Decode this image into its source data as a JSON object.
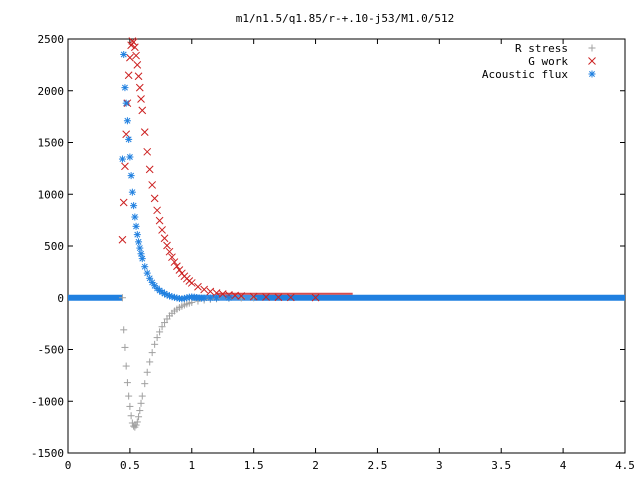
{
  "chart_data": {
    "type": "scatter",
    "title": "m1/n1.5/q1.85/r-+.10-j53/M1.0/512",
    "xlabel": "",
    "ylabel": "",
    "xlim": [
      0,
      4.5
    ],
    "ylim": [
      -1500,
      2500
    ],
    "xticks": [
      "0",
      "0.5",
      "1",
      "1.5",
      "2",
      "2.5",
      "3",
      "3.5",
      "4",
      "4.5"
    ],
    "yticks": [
      "2500",
      "2000",
      "1500",
      "1000",
      "500",
      "0",
      "-500",
      "-1000",
      "-1500"
    ],
    "grid": false,
    "legend_position": "top-right",
    "series": [
      {
        "name": "R stress",
        "marker": "+",
        "color": "#a0a0a0",
        "points": [
          [
            0.44,
            0
          ],
          [
            0.45,
            -310
          ],
          [
            0.46,
            -480
          ],
          [
            0.47,
            -660
          ],
          [
            0.48,
            -820
          ],
          [
            0.49,
            -950
          ],
          [
            0.5,
            -1050
          ],
          [
            0.51,
            -1140
          ],
          [
            0.52,
            -1210
          ],
          [
            0.53,
            -1240
          ],
          [
            0.54,
            -1250
          ],
          [
            0.55,
            -1230
          ],
          [
            0.56,
            -1200
          ],
          [
            0.57,
            -1150
          ],
          [
            0.58,
            -1090
          ],
          [
            0.59,
            -1020
          ],
          [
            0.6,
            -950
          ],
          [
            0.62,
            -830
          ],
          [
            0.64,
            -720
          ],
          [
            0.66,
            -620
          ],
          [
            0.68,
            -530
          ],
          [
            0.7,
            -450
          ],
          [
            0.72,
            -385
          ],
          [
            0.74,
            -330
          ],
          [
            0.76,
            -280
          ],
          [
            0.78,
            -240
          ],
          [
            0.8,
            -205
          ],
          [
            0.82,
            -175
          ],
          [
            0.84,
            -150
          ],
          [
            0.86,
            -128
          ],
          [
            0.88,
            -110
          ],
          [
            0.9,
            -95
          ],
          [
            0.92,
            -82
          ],
          [
            0.94,
            -70
          ],
          [
            0.96,
            -60
          ],
          [
            0.98,
            -52
          ],
          [
            1.0,
            -45
          ],
          [
            1.05,
            -32
          ],
          [
            1.1,
            -22
          ],
          [
            1.15,
            -15
          ],
          [
            1.2,
            -10
          ],
          [
            1.3,
            -5
          ],
          [
            1.4,
            -2
          ],
          [
            1.5,
            -1
          ]
        ]
      },
      {
        "name": "G work",
        "marker": "x",
        "color": "#cc2020",
        "points": [
          [
            0.44,
            560
          ],
          [
            0.45,
            920
          ],
          [
            0.46,
            1270
          ],
          [
            0.47,
            1580
          ],
          [
            0.48,
            1880
          ],
          [
            0.49,
            2150
          ],
          [
            0.5,
            2320
          ],
          [
            0.51,
            2440
          ],
          [
            0.52,
            2480
          ],
          [
            0.53,
            2470
          ],
          [
            0.54,
            2420
          ],
          [
            0.55,
            2340
          ],
          [
            0.56,
            2250
          ],
          [
            0.57,
            2140
          ],
          [
            0.58,
            2030
          ],
          [
            0.59,
            1920
          ],
          [
            0.6,
            1810
          ],
          [
            0.62,
            1600
          ],
          [
            0.64,
            1410
          ],
          [
            0.66,
            1240
          ],
          [
            0.68,
            1090
          ],
          [
            0.7,
            960
          ],
          [
            0.72,
            845
          ],
          [
            0.74,
            745
          ],
          [
            0.76,
            655
          ],
          [
            0.78,
            575
          ],
          [
            0.8,
            505
          ],
          [
            0.82,
            445
          ],
          [
            0.84,
            392
          ],
          [
            0.86,
            345
          ],
          [
            0.88,
            304
          ],
          [
            0.9,
            268
          ],
          [
            0.92,
            236
          ],
          [
            0.94,
            208
          ],
          [
            0.96,
            184
          ],
          [
            0.98,
            162
          ],
          [
            1.0,
            143
          ],
          [
            1.05,
            106
          ],
          [
            1.1,
            80
          ],
          [
            1.15,
            60
          ],
          [
            1.2,
            46
          ],
          [
            1.25,
            36
          ],
          [
            1.3,
            28
          ],
          [
            1.35,
            22
          ],
          [
            1.4,
            17
          ],
          [
            1.5,
            11
          ],
          [
            1.6,
            7
          ],
          [
            1.7,
            5
          ],
          [
            1.8,
            3
          ],
          [
            2.0,
            1
          ]
        ]
      },
      {
        "name": "Acoustic flux",
        "marker": "*",
        "color": "#2080e0",
        "points": [
          [
            0.44,
            1340
          ],
          [
            0.45,
            2350
          ],
          [
            0.46,
            2030
          ],
          [
            0.47,
            1880
          ],
          [
            0.48,
            1710
          ],
          [
            0.49,
            1530
          ],
          [
            0.5,
            1360
          ],
          [
            0.51,
            1180
          ],
          [
            0.52,
            1020
          ],
          [
            0.53,
            890
          ],
          [
            0.54,
            780
          ],
          [
            0.55,
            690
          ],
          [
            0.56,
            610
          ],
          [
            0.57,
            540
          ],
          [
            0.58,
            480
          ],
          [
            0.59,
            425
          ],
          [
            0.6,
            378
          ],
          [
            0.62,
            300
          ],
          [
            0.64,
            238
          ],
          [
            0.66,
            188
          ],
          [
            0.68,
            148
          ],
          [
            0.7,
            116
          ],
          [
            0.72,
            90
          ],
          [
            0.74,
            70
          ],
          [
            0.76,
            54
          ],
          [
            0.78,
            40
          ],
          [
            0.8,
            28
          ],
          [
            0.82,
            18
          ],
          [
            0.84,
            10
          ],
          [
            0.86,
            4
          ],
          [
            0.88,
            -2
          ],
          [
            0.9,
            -8
          ],
          [
            0.92,
            -10
          ],
          [
            0.94,
            -6
          ],
          [
            0.96,
            0
          ],
          [
            0.98,
            6
          ],
          [
            1.0,
            8
          ],
          [
            1.02,
            6
          ],
          [
            1.04,
            2
          ],
          [
            1.06,
            -2
          ],
          [
            1.08,
            -4
          ],
          [
            1.1,
            -4
          ],
          [
            1.15,
            -2
          ],
          [
            1.2,
            -1
          ],
          [
            1.3,
            0
          ]
        ]
      }
    ]
  }
}
